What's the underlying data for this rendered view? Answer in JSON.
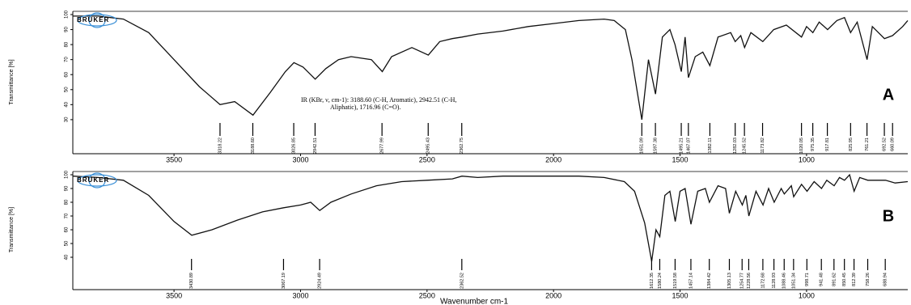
{
  "chart_data": [
    {
      "type": "line",
      "letter": "A",
      "logo": "BRUKER",
      "y_label": "Transmittance [%]",
      "annotation": [
        "IR (KBr, ν, cm-1): 3188.60 (C-H, Aromatic), 2942.51 (C-H,",
        "Aliphatic), 1716.96 (C=O)."
      ],
      "color": "#111111",
      "xlim": [
        3900,
        600
      ],
      "xticks": [
        3500,
        3000,
        2500,
        2000,
        1500,
        1000
      ],
      "ylim": [
        10,
        100
      ],
      "yticks": [
        30,
        40,
        50,
        60,
        70,
        80,
        90,
        100
      ],
      "x": [
        3900,
        3800,
        3700,
        3600,
        3500,
        3400,
        3318,
        3260,
        3188,
        3120,
        3060,
        3026,
        2990,
        2942,
        2900,
        2850,
        2800,
        2720,
        2677,
        2640,
        2560,
        2495,
        2450,
        2400,
        2362,
        2300,
        2200,
        2100,
        2000,
        1900,
        1800,
        1760,
        1716,
        1690,
        1651,
        1625,
        1597,
        1570,
        1540,
        1520,
        1495,
        1480,
        1467,
        1440,
        1410,
        1382,
        1350,
        1300,
        1282,
        1260,
        1245,
        1220,
        1173,
        1130,
        1080,
        1020,
        1000,
        975,
        950,
        917,
        880,
        850,
        826,
        800,
        761,
        740,
        692,
        660,
        620,
        600
      ],
      "values": [
        99,
        99,
        97,
        88,
        70,
        52,
        40,
        42,
        33,
        48,
        62,
        68,
        65,
        57,
        64,
        70,
        72,
        70,
        62,
        72,
        78,
        73,
        82,
        84,
        85,
        87,
        89,
        92,
        94,
        96,
        97,
        96,
        90,
        70,
        30,
        70,
        47,
        85,
        90,
        80,
        62,
        85,
        58,
        72,
        75,
        66,
        85,
        88,
        82,
        86,
        78,
        88,
        82,
        90,
        93,
        85,
        92,
        88,
        95,
        90,
        96,
        98,
        88,
        95,
        70,
        92,
        84,
        86,
        92,
        96
      ],
      "peaks": [
        3318.22,
        {
          "value": 3188.6,
          "label": "3188.60"
        },
        3026.85,
        2942.51,
        2677.99,
        2495.43,
        2362.75,
        1651.09,
        1597.38,
        1495.21,
        1467.07,
        1382.11,
        1282.03,
        1245.52,
        1173.82,
        1020.05,
        975.35,
        917.81,
        825.95,
        761.21,
        692.52,
        660.09
      ]
    },
    {
      "type": "line",
      "letter": "B",
      "logo": "BRUKER",
      "y_label": "Transmittance [%]",
      "x_label": "Wavenumber cm-1",
      "color": "#111111",
      "xlim": [
        3900,
        600
      ],
      "xticks": [
        3500,
        3000,
        2500,
        2000,
        1500,
        1000
      ],
      "ylim": [
        20,
        100
      ],
      "yticks": [
        40,
        50,
        60,
        70,
        80,
        90,
        100
      ],
      "x": [
        3900,
        3800,
        3700,
        3600,
        3500,
        3430,
        3350,
        3250,
        3150,
        3067,
        3000,
        2960,
        2924,
        2880,
        2800,
        2700,
        2600,
        2500,
        2400,
        2362,
        2300,
        2200,
        2000,
        1900,
        1800,
        1720,
        1680,
        1640,
        1612,
        1595,
        1580,
        1560,
        1540,
        1519,
        1500,
        1480,
        1457,
        1430,
        1400,
        1384,
        1350,
        1320,
        1305,
        1280,
        1254,
        1240,
        1228,
        1200,
        1172,
        1150,
        1128,
        1100,
        1088,
        1060,
        1051,
        1020,
        998,
        970,
        941,
        920,
        891,
        870,
        850,
        830,
        812,
        790,
        758,
        720,
        688,
        650,
        600
      ],
      "values": [
        99,
        98,
        96,
        85,
        66,
        56,
        60,
        67,
        73,
        76,
        78,
        80,
        74,
        80,
        86,
        92,
        95,
        96,
        97,
        99,
        98,
        99,
        99,
        99,
        98,
        95,
        88,
        65,
        37,
        60,
        55,
        85,
        88,
        66,
        88,
        90,
        64,
        88,
        90,
        80,
        92,
        90,
        72,
        88,
        78,
        85,
        70,
        88,
        78,
        90,
        80,
        90,
        86,
        92,
        84,
        93,
        88,
        95,
        90,
        96,
        92,
        98,
        96,
        100,
        88,
        98,
        96,
        96,
        96,
        94,
        95
      ],
      "peaks": [
        3430.89,
        3067.19,
        2924.49,
        2362.52,
        1612.35,
        1580.24,
        1519.58,
        1457.14,
        1384.42,
        1305.13,
        1254.77,
        1228.56,
        1172.68,
        1128.93,
        1088.46,
        1051.34,
        998.71,
        941.48,
        891.62,
        850.45,
        812.39,
        758.26,
        688.94
      ]
    }
  ]
}
